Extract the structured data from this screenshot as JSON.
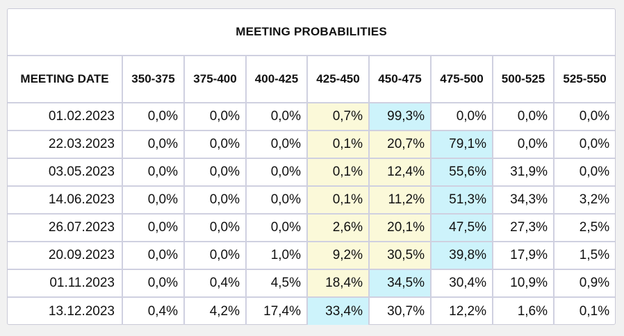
{
  "title": "MEETING PROBABILITIES",
  "columns": [
    "MEETING DATE",
    "350-375",
    "375-400",
    "400-425",
    "425-450",
    "450-475",
    "475-500",
    "500-525",
    "525-550"
  ],
  "rows": [
    {
      "date": "01.02.2023",
      "values": [
        "0,0%",
        "0,0%",
        "0,0%",
        "0,7%",
        "99,3%",
        "0,0%",
        "0,0%",
        "0,0%"
      ]
    },
    {
      "date": "22.03.2023",
      "values": [
        "0,0%",
        "0,0%",
        "0,0%",
        "0,1%",
        "20,7%",
        "79,1%",
        "0,0%",
        "0,0%"
      ]
    },
    {
      "date": "03.05.2023",
      "values": [
        "0,0%",
        "0,0%",
        "0,0%",
        "0,1%",
        "12,4%",
        "55,6%",
        "31,9%",
        "0,0%"
      ]
    },
    {
      "date": "14.06.2023",
      "values": [
        "0,0%",
        "0,0%",
        "0,0%",
        "0,1%",
        "11,2%",
        "51,3%",
        "34,3%",
        "3,2%"
      ]
    },
    {
      "date": "26.07.2023",
      "values": [
        "0,0%",
        "0,0%",
        "0,0%",
        "2,6%",
        "20,1%",
        "47,5%",
        "27,3%",
        "2,5%"
      ]
    },
    {
      "date": "20.09.2023",
      "values": [
        "0,0%",
        "0,0%",
        "1,0%",
        "9,2%",
        "30,5%",
        "39,8%",
        "17,9%",
        "1,5%"
      ]
    },
    {
      "date": "01.11.2023",
      "values": [
        "0,0%",
        "0,4%",
        "4,5%",
        "18,4%",
        "34,5%",
        "30,4%",
        "10,9%",
        "0,9%"
      ]
    },
    {
      "date": "13.12.2023",
      "values": [
        "0,4%",
        "4,2%",
        "17,4%",
        "33,4%",
        "30,7%",
        "12,2%",
        "1,6%",
        "0,1%"
      ]
    }
  ],
  "highlights": [
    [
      "",
      "",
      "",
      "yellow",
      "blue",
      "",
      "",
      ""
    ],
    [
      "",
      "",
      "",
      "yellow",
      "yellow",
      "blue",
      "",
      ""
    ],
    [
      "",
      "",
      "",
      "yellow",
      "yellow",
      "blue",
      "",
      ""
    ],
    [
      "",
      "",
      "",
      "yellow",
      "yellow",
      "blue",
      "",
      ""
    ],
    [
      "",
      "",
      "",
      "yellow",
      "yellow",
      "blue",
      "",
      ""
    ],
    [
      "",
      "",
      "",
      "yellow",
      "yellow",
      "blue",
      "",
      ""
    ],
    [
      "",
      "",
      "",
      "yellow",
      "blue",
      "",
      "",
      ""
    ],
    [
      "",
      "",
      "",
      "blue",
      "",
      "",
      "",
      ""
    ]
  ],
  "colors": {
    "current_target_highlight": "#fbf9d9",
    "most_likely_highlight": "#cdf3fb",
    "border": "#cfd0e0"
  }
}
